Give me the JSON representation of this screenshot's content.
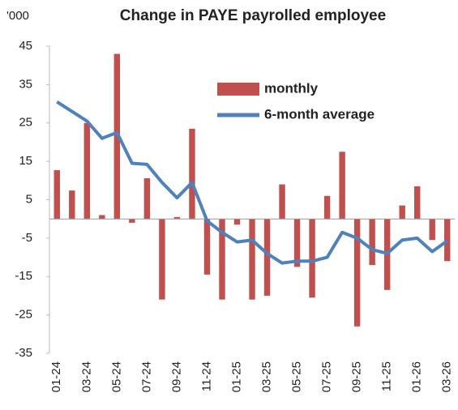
{
  "chart_data": {
    "type": "bar",
    "title": "Change in PAYE payrolled employee",
    "y_label": "'000",
    "categories": [
      "01-24",
      null,
      "03-24",
      null,
      "05-24",
      null,
      "07-24",
      null,
      "09-24",
      null,
      "11-24",
      null,
      "01-25",
      null,
      "03-25",
      null,
      "05-25",
      null,
      "07-25",
      null,
      "09-25",
      null,
      "11-25",
      null,
      "01-26",
      null,
      "03-26"
    ],
    "series": [
      {
        "name": "monthly",
        "type": "bar",
        "color": "#c0504d",
        "values": [
          12.7,
          7.4,
          25,
          1,
          43,
          -1,
          10.6,
          -21,
          0.5,
          23.5,
          -14.5,
          -21,
          -1.5,
          -21,
          -20,
          9,
          -12.5,
          -20.5,
          6,
          17.5,
          -28,
          -12,
          -18.5,
          3.5,
          8.5,
          -5.5,
          -11
        ]
      },
      {
        "name": "6-month average",
        "type": "line",
        "color": "#4f81bd",
        "values": [
          30.5,
          28,
          25.5,
          21,
          22.5,
          14.5,
          14.2,
          9.5,
          5.5,
          9.5,
          -0.5,
          -3.5,
          -6,
          -5.5,
          -9,
          -11.5,
          -11,
          -11,
          -10,
          -3.5,
          -5,
          -8,
          -9,
          -5.5,
          -5,
          -8.5,
          -5.7
        ]
      }
    ],
    "ylim": [
      -35,
      45
    ],
    "yticks": [
      -35,
      -25,
      -15,
      -5,
      5,
      15,
      25,
      35,
      45
    ],
    "legend": "top",
    "grid": false
  }
}
